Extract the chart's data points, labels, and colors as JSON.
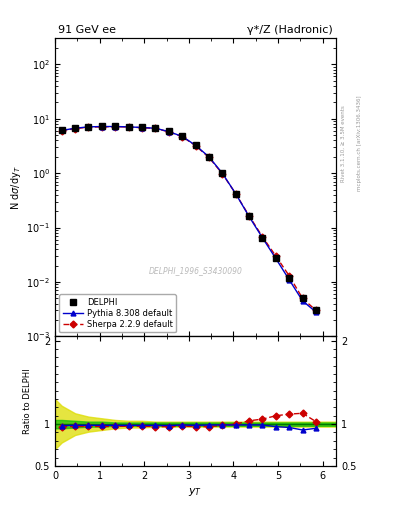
{
  "title_left": "91 GeV ee",
  "title_right": "γ*/Z (Hadronic)",
  "ylabel_main": "N dσ/dy$_T$",
  "ylabel_ratio": "Ratio to DELPHI",
  "xlabel": "y$_T$",
  "right_label": "Rivet 3.1.10, ≥ 3.5M events",
  "right_label2": "mcplots.cern.ch [arXiv:1306.3436]",
  "watermark": "DELPHI_1996_S3430090",
  "ylim_main": [
    0.001,
    300
  ],
  "ylim_ratio": [
    0.5,
    2.05
  ],
  "xlim": [
    0,
    6.3
  ],
  "delphi_x": [
    0.15,
    0.45,
    0.75,
    1.05,
    1.35,
    1.65,
    1.95,
    2.25,
    2.55,
    2.85,
    3.15,
    3.45,
    3.75,
    4.05,
    4.35,
    4.65,
    4.95,
    5.25,
    5.55,
    5.85
  ],
  "delphi_y": [
    6.2,
    6.8,
    7.2,
    7.3,
    7.3,
    7.2,
    7.0,
    6.8,
    5.9,
    4.8,
    3.3,
    2.0,
    1.0,
    0.42,
    0.16,
    0.065,
    0.028,
    0.012,
    0.005,
    0.003
  ],
  "delphi_yerr": [
    0.3,
    0.3,
    0.3,
    0.3,
    0.3,
    0.3,
    0.3,
    0.3,
    0.25,
    0.2,
    0.15,
    0.1,
    0.06,
    0.025,
    0.01,
    0.005,
    0.002,
    0.001,
    0.0005,
    0.0003
  ],
  "pythia_x": [
    0.15,
    0.45,
    0.75,
    1.05,
    1.35,
    1.65,
    1.95,
    2.25,
    2.55,
    2.85,
    3.15,
    3.45,
    3.75,
    4.05,
    4.35,
    4.65,
    4.95,
    5.25,
    5.55,
    5.85
  ],
  "pythia_y": [
    6.1,
    6.7,
    7.1,
    7.2,
    7.2,
    7.1,
    6.9,
    6.7,
    5.8,
    4.75,
    3.25,
    2.0,
    1.0,
    0.42,
    0.16,
    0.065,
    0.027,
    0.011,
    0.0045,
    0.0028
  ],
  "sherpa_x": [
    0.15,
    0.45,
    0.75,
    1.05,
    1.35,
    1.65,
    1.95,
    2.25,
    2.55,
    2.85,
    3.15,
    3.45,
    3.75,
    4.05,
    4.35,
    4.65,
    4.95,
    5.25,
    5.55,
    5.85
  ],
  "sherpa_y": [
    6.0,
    6.6,
    7.0,
    7.1,
    7.15,
    7.05,
    6.85,
    6.65,
    5.75,
    4.7,
    3.2,
    1.95,
    0.98,
    0.42,
    0.165,
    0.068,
    0.03,
    0.013,
    0.005,
    0.003
  ],
  "ratio_pythia": [
    0.982,
    0.986,
    0.986,
    0.986,
    0.985,
    0.985,
    0.985,
    0.985,
    0.982,
    0.99,
    0.985,
    0.99,
    0.99,
    0.99,
    0.99,
    0.99,
    0.97,
    0.96,
    0.93,
    0.95
  ],
  "ratio_sherpa": [
    0.968,
    0.972,
    0.972,
    0.972,
    0.972,
    0.975,
    0.975,
    0.97,
    0.97,
    0.975,
    0.97,
    0.97,
    0.985,
    1.0,
    1.04,
    1.06,
    1.1,
    1.12,
    1.13,
    1.03
  ],
  "band_x": [
    0.0,
    0.15,
    0.45,
    0.75,
    1.05,
    1.35,
    1.65,
    1.95,
    2.25,
    2.55,
    2.85,
    3.15,
    3.45,
    3.75,
    4.05,
    4.35,
    4.65,
    4.95,
    5.25,
    5.55,
    5.85,
    6.3
  ],
  "band_green_upper": [
    1.05,
    1.05,
    1.04,
    1.03,
    1.03,
    1.02,
    1.02,
    1.02,
    1.02,
    1.02,
    1.02,
    1.02,
    1.02,
    1.02,
    1.02,
    1.02,
    1.02,
    1.02,
    1.02,
    1.02,
    1.02,
    1.02
  ],
  "band_green_lower": [
    0.95,
    0.95,
    0.96,
    0.97,
    0.97,
    0.98,
    0.98,
    0.98,
    0.98,
    0.98,
    0.98,
    0.98,
    0.98,
    0.98,
    0.98,
    0.98,
    0.98,
    0.98,
    0.98,
    0.98,
    0.98,
    0.98
  ],
  "band_yellow_upper": [
    1.3,
    1.22,
    1.13,
    1.09,
    1.07,
    1.05,
    1.04,
    1.04,
    1.03,
    1.03,
    1.03,
    1.03,
    1.03,
    1.03,
    1.03,
    1.03,
    1.03,
    1.03,
    1.03,
    1.03,
    1.03,
    1.03
  ],
  "band_yellow_lower": [
    0.7,
    0.78,
    0.87,
    0.91,
    0.93,
    0.95,
    0.96,
    0.96,
    0.97,
    0.97,
    0.97,
    0.97,
    0.97,
    0.97,
    0.97,
    0.97,
    0.97,
    0.97,
    0.97,
    0.97,
    0.97,
    0.97
  ],
  "color_delphi": "#000000",
  "color_pythia": "#0000cc",
  "color_sherpa": "#cc0000",
  "color_band_green": "#00bb00",
  "color_band_yellow": "#dddd00",
  "color_ratio_line": "#007700"
}
